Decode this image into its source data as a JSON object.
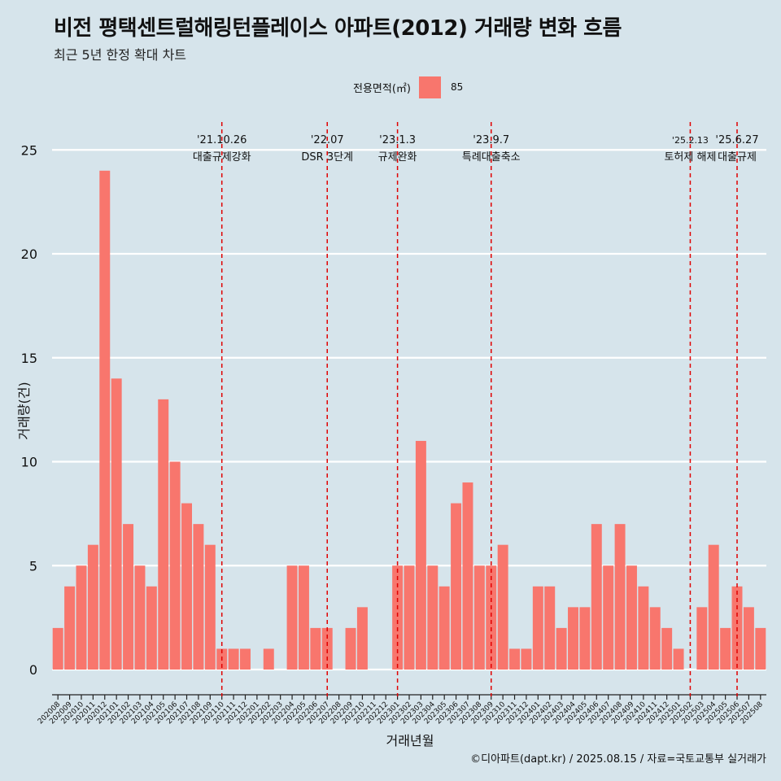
{
  "title": "비전 평택센트럴해링턴플레이스 아파트(2012) 거래량 변화 흐름",
  "subtitle": "최근 5년 한정 확대 차트",
  "legend": {
    "title": "전용면적(㎡)",
    "entry": "85"
  },
  "caption": "©디아파트(dapt.kr) / 2025.08.15 / 자료=국토교통부 실거래가",
  "colors": {
    "background": "#d6e4eb",
    "bar": "#f8766d",
    "grid": "#ffffff",
    "event_line": "#e00000"
  },
  "chart_data": {
    "type": "bar",
    "xlabel": "거래년월",
    "ylabel": "거래량(건)",
    "ylim": [
      -1,
      26
    ],
    "yticks": [
      0,
      5,
      10,
      15,
      20,
      25
    ],
    "grid": "horizontal",
    "legend_position": "top",
    "categories": [
      "202008",
      "202009",
      "202010",
      "202011",
      "202012",
      "202101",
      "202102",
      "202103",
      "202104",
      "202105",
      "202106",
      "202107",
      "202108",
      "202109",
      "202110",
      "202111",
      "202112",
      "202201",
      "202202",
      "202203",
      "202204",
      "202205",
      "202206",
      "202207",
      "202208",
      "202209",
      "202210",
      "202211",
      "202212",
      "202301",
      "202302",
      "202303",
      "202304",
      "202305",
      "202306",
      "202307",
      "202308",
      "202309",
      "202310",
      "202311",
      "202312",
      "202401",
      "202402",
      "202403",
      "202404",
      "202405",
      "202406",
      "202407",
      "202408",
      "202409",
      "202410",
      "202411",
      "202412",
      "202501",
      "202502",
      "202503",
      "202504",
      "202505",
      "202506",
      "202507",
      "202508"
    ],
    "series": [
      {
        "name": "85",
        "values": [
          2,
          4,
          5,
          6,
          24,
          14,
          7,
          5,
          4,
          13,
          10,
          8,
          7,
          6,
          1,
          1,
          1,
          0,
          1,
          0,
          5,
          5,
          2,
          2,
          0,
          2,
          3,
          0,
          0,
          5,
          5,
          11,
          5,
          4,
          8,
          9,
          5,
          5,
          6,
          1,
          1,
          4,
          4,
          2,
          3,
          3,
          7,
          5,
          7,
          5,
          4,
          3,
          2,
          1,
          0,
          3,
          6,
          2,
          4,
          3,
          2
        ]
      }
    ],
    "events": [
      {
        "date": "'21.10.26",
        "label": "대출규제강화",
        "x": "202110"
      },
      {
        "date": "'22.07",
        "label": "DSR 3단계",
        "x": "202207"
      },
      {
        "date": "'23.1.3",
        "label": "규제완화",
        "x": "202301"
      },
      {
        "date": "'23.9.7",
        "label": "특례대출축소",
        "x": "202309"
      },
      {
        "date": "'25.2.13",
        "label": "토허제 해제",
        "x": "202502"
      },
      {
        "date": "'25.6.27",
        "label": "대출규제",
        "x": "202506"
      }
    ]
  }
}
